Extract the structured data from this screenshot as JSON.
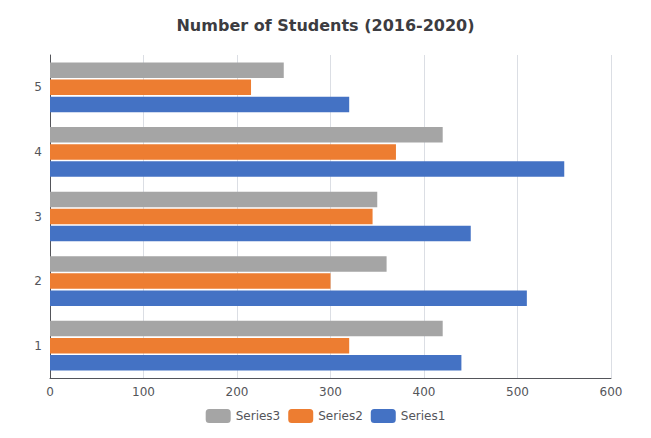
{
  "chart_data": {
    "type": "bar",
    "orientation": "horizontal",
    "title": "Number of Students (2016-2020)",
    "categories": [
      1,
      2,
      3,
      4,
      5
    ],
    "series": [
      {
        "name": "Series3",
        "color": "#A5A5A5",
        "values": [
          420,
          360,
          350,
          420,
          250
        ]
      },
      {
        "name": "Series2",
        "color": "#ED7D31",
        "values": [
          320,
          300,
          345,
          370,
          215
        ]
      },
      {
        "name": "Series1",
        "color": "#4472C4",
        "values": [
          440,
          510,
          450,
          550,
          320
        ]
      }
    ],
    "xlim": [
      0,
      600
    ],
    "xticks": [
      0,
      100,
      200,
      300,
      400,
      500,
      600
    ],
    "grid": true,
    "legend": "bottom"
  }
}
